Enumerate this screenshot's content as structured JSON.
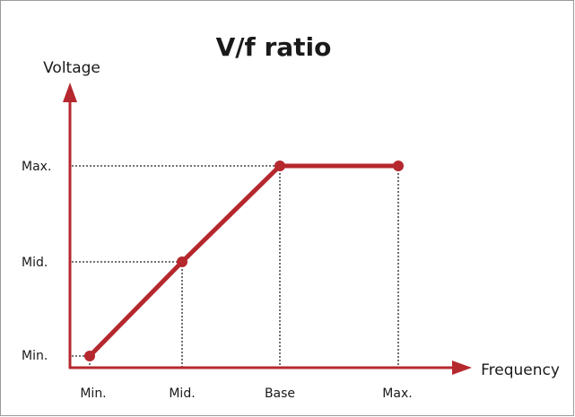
{
  "title": "V/f ratio",
  "y_axis": {
    "label": "Voltage",
    "ticks": [
      "Min.",
      "Mid.",
      "Max."
    ]
  },
  "x_axis": {
    "label": "Frequency",
    "ticks": [
      "Min.",
      "Mid.",
      "Base",
      "Max."
    ]
  }
}
